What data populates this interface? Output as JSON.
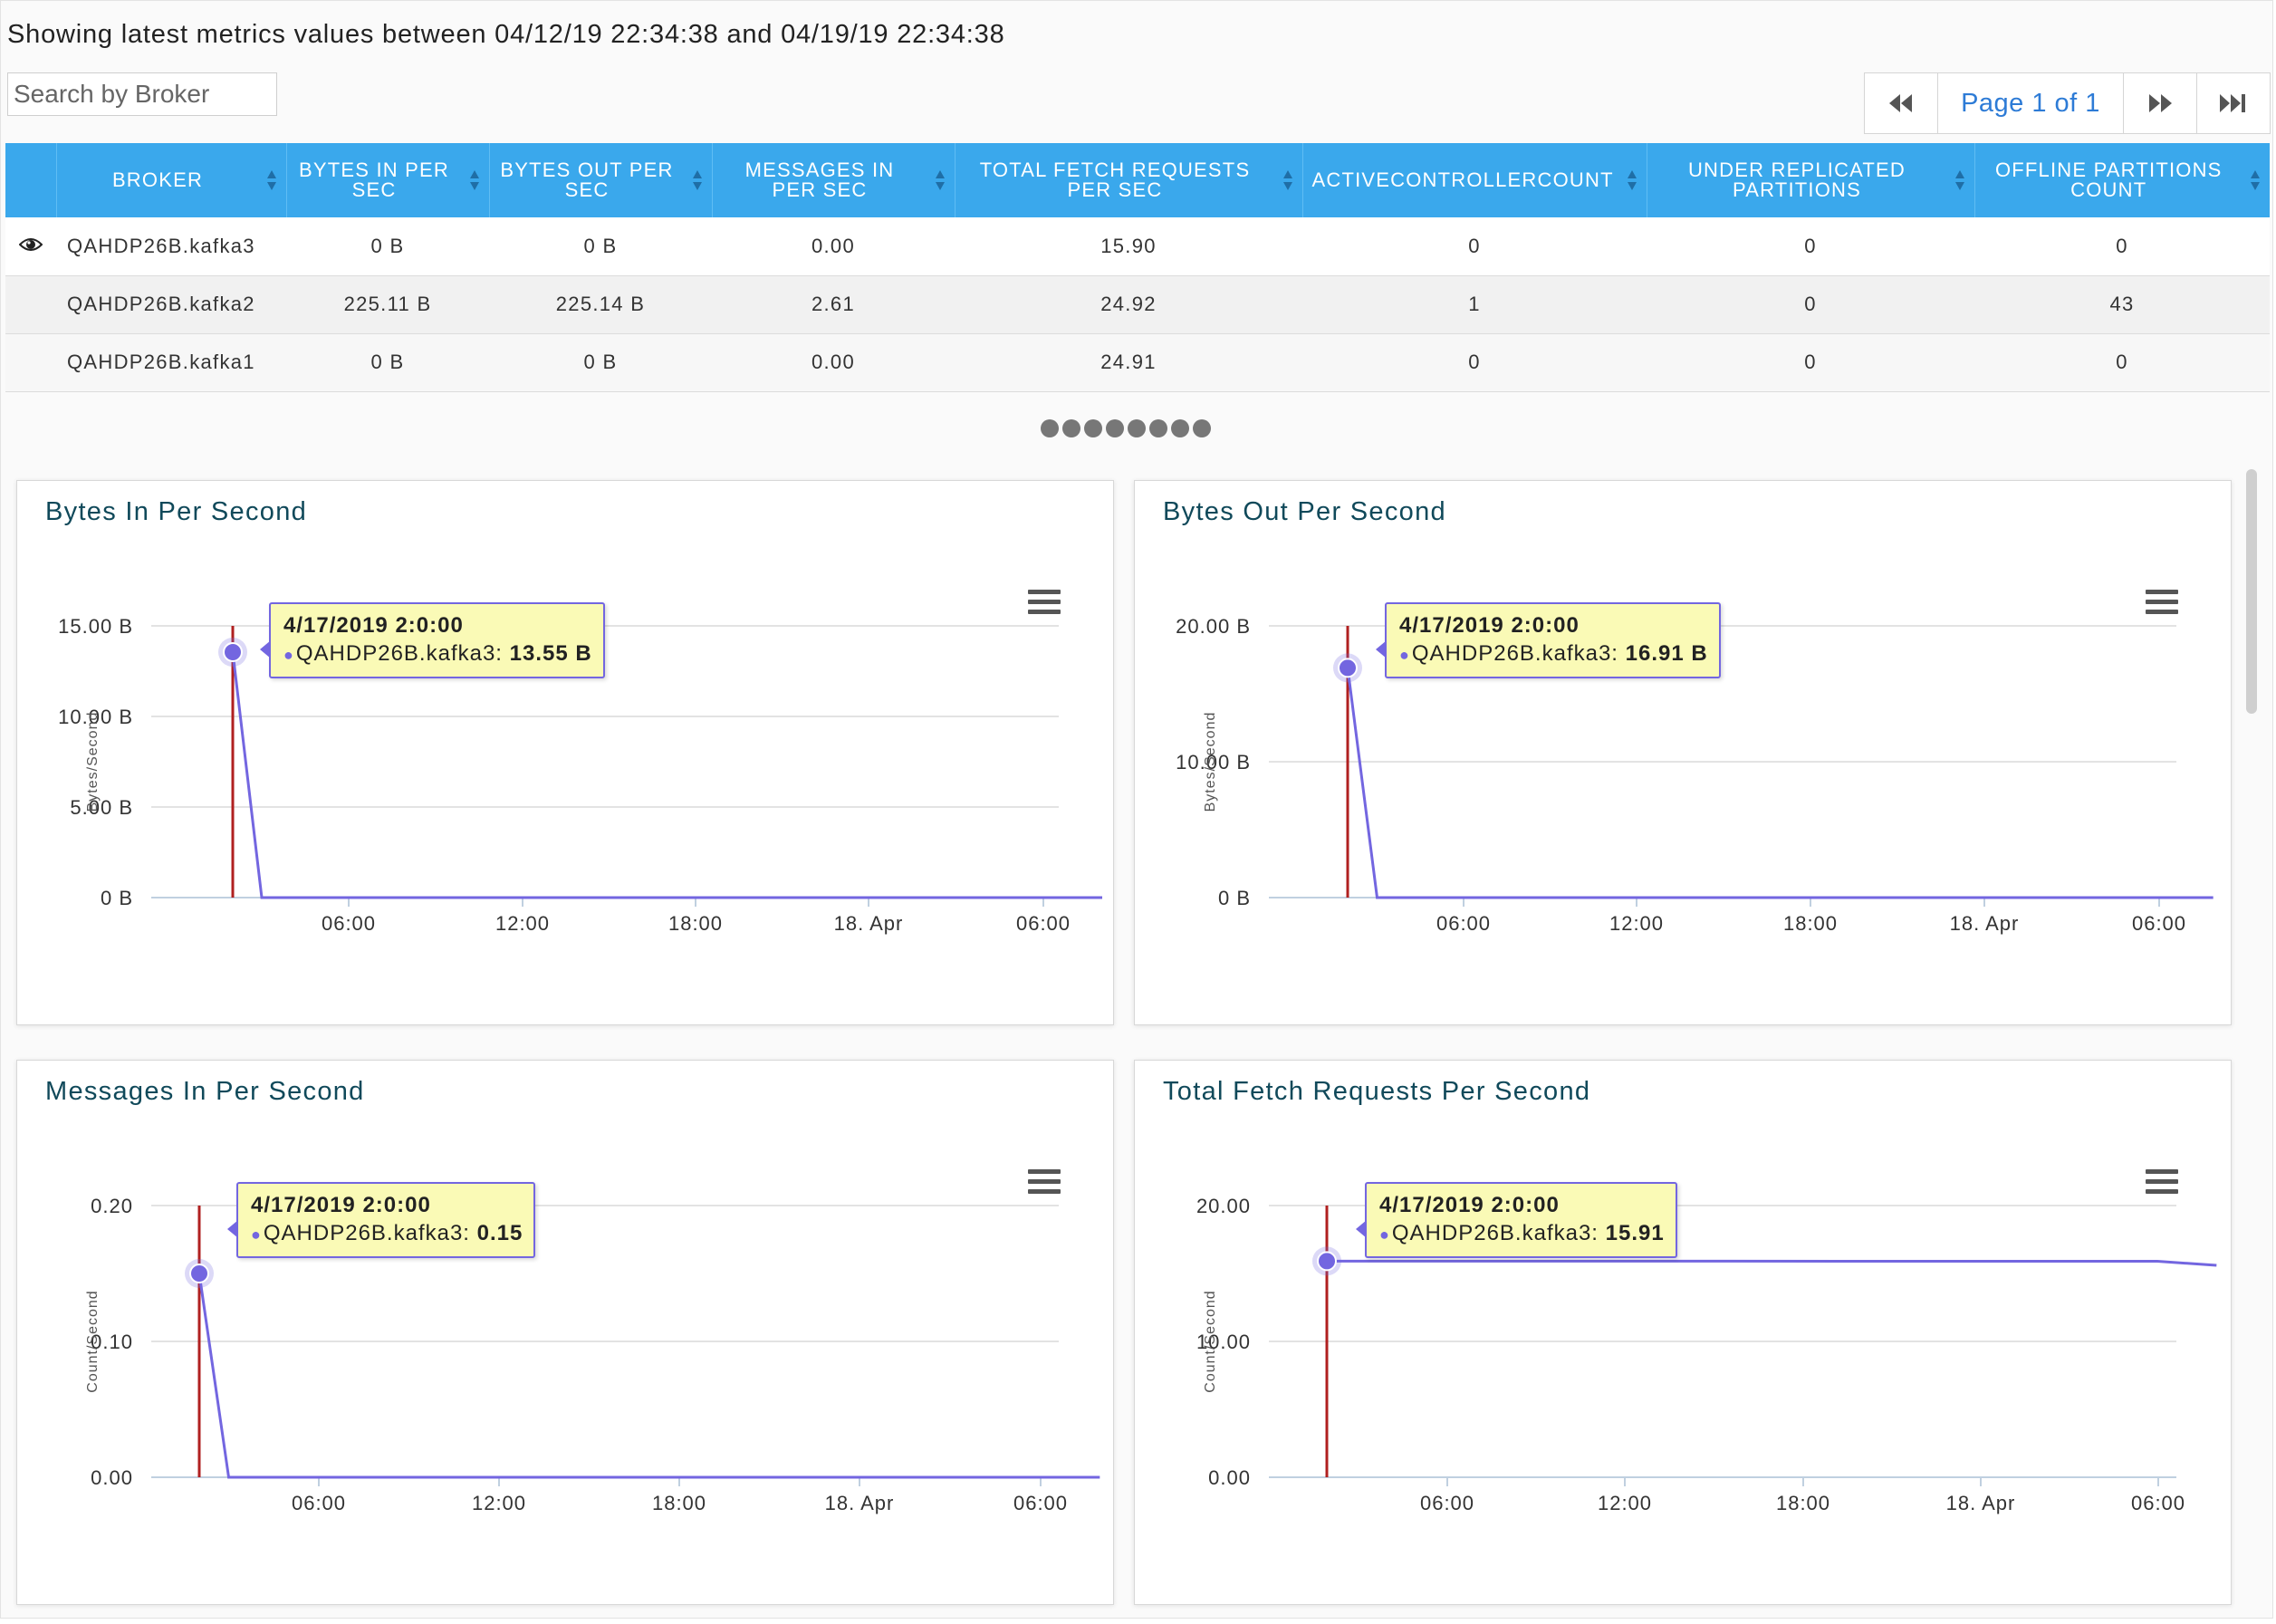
{
  "header": {
    "text": "Showing latest metrics values between 04/12/19 22:34:38 and 04/19/19 22:34:38"
  },
  "search": {
    "placeholder": "Search by Broker"
  },
  "pager": {
    "first_icon": "first-page-icon",
    "label": "Page 1 of 1",
    "next_icon": "next-page-icon",
    "last_icon": "last-page-icon"
  },
  "table": {
    "header_color": "#3aa8ec",
    "columns": [
      "BROKER",
      "BYTES IN PER SEC",
      "BYTES OUT PER SEC",
      "MESSAGES IN PER SEC",
      "TOTAL FETCH REQUESTS PER SEC",
      "ACTIVECONTROLLERCOUNT",
      "UNDER REPLICATED PARTITIONS",
      "OFFLINE PARTITIONS COUNT"
    ],
    "rows": [
      {
        "selected_icon": "eye-icon",
        "cells": [
          "QAHDP26B.kafka3",
          "0 B",
          "0 B",
          "0.00",
          "15.90",
          "0",
          "0",
          "0"
        ]
      },
      {
        "cells": [
          "QAHDP26B.kafka2",
          "225.11 B",
          "225.14 B",
          "2.61",
          "24.92",
          "1",
          "0",
          "43"
        ]
      },
      {
        "cells": [
          "QAHDP26B.kafka1",
          "0 B",
          "0 B",
          "0.00",
          "24.91",
          "0",
          "0",
          "0"
        ]
      }
    ]
  },
  "pagination_dots": {
    "count": 8,
    "icon": "dots-icon"
  },
  "chart_data": [
    {
      "type": "line",
      "title": "Bytes In Per Second",
      "ylabel": "Bytes/Second",
      "xlabel": "",
      "y_ticks": [
        "0 B",
        "5.00 B",
        "10.00 B",
        "15.00 B"
      ],
      "ylim": [
        0,
        15
      ],
      "x_ticks": [
        "06:00",
        "12:00",
        "18:00",
        "18. Apr",
        "06:00"
      ],
      "x": [
        "4/17/2019 2:00",
        "4/17/2019 3:00",
        "4/18/2019 8:00"
      ],
      "series": [
        {
          "values": [
            13.55,
            0,
            0
          ]
        }
      ],
      "line_color": "#7366e0",
      "crosshair_color": "#b02020",
      "tooltip": {
        "date": "4/17/2019 2:0:00",
        "series": "QAHDP26B.kafka3:",
        "value": "13.55 B"
      },
      "grid": true
    },
    {
      "type": "line",
      "title": "Bytes Out Per Second",
      "ylabel": "Bytes/Second",
      "xlabel": "",
      "y_ticks": [
        "0 B",
        "10.00 B",
        "20.00 B"
      ],
      "ylim": [
        0,
        20
      ],
      "x_ticks": [
        "06:00",
        "12:00",
        "18:00",
        "18. Apr",
        "06:00"
      ],
      "x": [
        "4/17/2019 2:00",
        "4/17/2019 3:00",
        "4/18/2019 8:00"
      ],
      "series": [
        {
          "values": [
            16.91,
            0,
            0
          ]
        }
      ],
      "line_color": "#7366e0",
      "crosshair_color": "#b02020",
      "tooltip": {
        "date": "4/17/2019 2:0:00",
        "series": "QAHDP26B.kafka3:",
        "value": "16.91 B"
      },
      "grid": true
    },
    {
      "type": "line",
      "title": "Messages In Per Second",
      "ylabel": "Count/Second",
      "xlabel": "",
      "y_ticks": [
        "0.00",
        "0.10",
        "0.20"
      ],
      "ylim": [
        0,
        0.2
      ],
      "x_ticks": [
        "06:00",
        "12:00",
        "18:00",
        "18. Apr",
        "06:00"
      ],
      "x": [
        "4/17/2019 2:00",
        "4/17/2019 3:00",
        "4/18/2019 8:00"
      ],
      "series": [
        {
          "values": [
            0.15,
            0,
            0
          ]
        }
      ],
      "line_color": "#7366e0",
      "crosshair_color": "#b02020",
      "tooltip": {
        "date": "4/17/2019 2:0:00",
        "series": "QAHDP26B.kafka3:",
        "value": "0.15"
      },
      "grid": true
    },
    {
      "type": "line",
      "title": "Total Fetch Requests Per Second",
      "ylabel": "Count/Second",
      "xlabel": "",
      "y_ticks": [
        "0.00",
        "10.00",
        "20.00"
      ],
      "ylim": [
        0,
        20
      ],
      "x_ticks": [
        "06:00",
        "12:00",
        "18:00",
        "18. Apr",
        "06:00"
      ],
      "x": [
        "4/17/2019 2:00",
        "4/18/2019 6:00",
        "4/18/2019 8:00"
      ],
      "series": [
        {
          "values": [
            15.91,
            15.9,
            15.6
          ]
        }
      ],
      "line_color": "#7366e0",
      "crosshair_color": "#b02020",
      "tooltip": {
        "date": "4/17/2019 2:0:00",
        "series": "QAHDP26B.kafka3:",
        "value": "15.91"
      },
      "grid": true
    }
  ]
}
